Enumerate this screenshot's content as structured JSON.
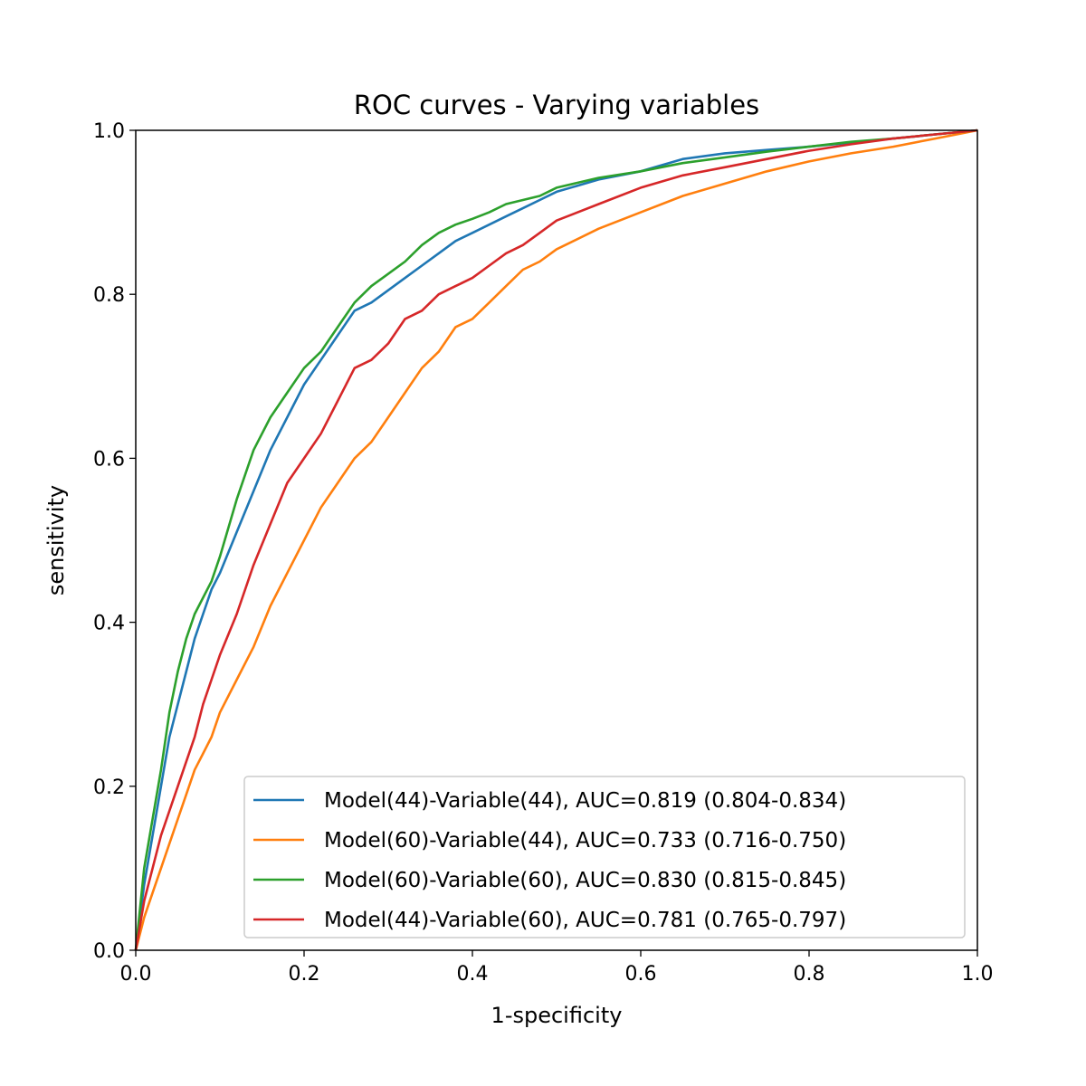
{
  "chart_data": {
    "type": "line",
    "title": "ROC curves - Varying variables",
    "xlabel": "1-specificity",
    "ylabel": "sensitivity",
    "xlim": [
      0.0,
      1.0
    ],
    "ylim": [
      0.0,
      1.0
    ],
    "xticks": [
      "0.0",
      "0.2",
      "0.4",
      "0.6",
      "0.8",
      "1.0"
    ],
    "yticks": [
      "0.0",
      "0.2",
      "0.4",
      "0.6",
      "0.8",
      "1.0"
    ],
    "grid": false,
    "legend_position": "lower-right",
    "series": [
      {
        "name": "Model(44)-Variable(44), AUC=0.819 (0.804-0.834)",
        "color": "#1f77b4",
        "x": [
          0,
          0.01,
          0.02,
          0.03,
          0.04,
          0.05,
          0.06,
          0.07,
          0.08,
          0.09,
          0.1,
          0.12,
          0.14,
          0.16,
          0.18,
          0.2,
          0.22,
          0.24,
          0.26,
          0.28,
          0.3,
          0.32,
          0.34,
          0.36,
          0.38,
          0.4,
          0.42,
          0.44,
          0.46,
          0.48,
          0.5,
          0.55,
          0.6,
          0.65,
          0.7,
          0.75,
          0.8,
          0.85,
          0.9,
          0.95,
          1.0
        ],
        "y": [
          0,
          0.08,
          0.14,
          0.2,
          0.26,
          0.3,
          0.34,
          0.38,
          0.41,
          0.44,
          0.46,
          0.51,
          0.56,
          0.61,
          0.65,
          0.69,
          0.72,
          0.75,
          0.78,
          0.79,
          0.805,
          0.82,
          0.835,
          0.85,
          0.865,
          0.875,
          0.885,
          0.895,
          0.905,
          0.915,
          0.925,
          0.94,
          0.95,
          0.965,
          0.972,
          0.976,
          0.98,
          0.985,
          0.99,
          0.995,
          1.0
        ]
      },
      {
        "name": "Model(60)-Variable(44), AUC=0.733 (0.716-0.750)",
        "color": "#ff7f0e",
        "x": [
          0,
          0.01,
          0.02,
          0.03,
          0.04,
          0.05,
          0.06,
          0.07,
          0.08,
          0.09,
          0.1,
          0.12,
          0.14,
          0.16,
          0.18,
          0.2,
          0.22,
          0.24,
          0.26,
          0.28,
          0.3,
          0.32,
          0.34,
          0.36,
          0.38,
          0.4,
          0.42,
          0.44,
          0.46,
          0.48,
          0.5,
          0.55,
          0.6,
          0.65,
          0.7,
          0.75,
          0.8,
          0.85,
          0.9,
          0.95,
          1.0
        ],
        "y": [
          0,
          0.04,
          0.07,
          0.1,
          0.13,
          0.16,
          0.19,
          0.22,
          0.24,
          0.26,
          0.29,
          0.33,
          0.37,
          0.42,
          0.46,
          0.5,
          0.54,
          0.57,
          0.6,
          0.62,
          0.65,
          0.68,
          0.71,
          0.73,
          0.76,
          0.77,
          0.79,
          0.81,
          0.83,
          0.84,
          0.855,
          0.88,
          0.9,
          0.92,
          0.935,
          0.95,
          0.962,
          0.972,
          0.98,
          0.99,
          1.0
        ]
      },
      {
        "name": "Model(60)-Variable(60), AUC=0.830 (0.815-0.845)",
        "color": "#2ca02c",
        "x": [
          0,
          0.01,
          0.02,
          0.03,
          0.04,
          0.05,
          0.06,
          0.07,
          0.08,
          0.09,
          0.1,
          0.12,
          0.14,
          0.16,
          0.18,
          0.2,
          0.22,
          0.24,
          0.26,
          0.28,
          0.3,
          0.32,
          0.34,
          0.36,
          0.38,
          0.4,
          0.42,
          0.44,
          0.46,
          0.48,
          0.5,
          0.55,
          0.6,
          0.65,
          0.7,
          0.75,
          0.8,
          0.85,
          0.9,
          0.95,
          1.0
        ],
        "y": [
          0,
          0.1,
          0.16,
          0.22,
          0.29,
          0.34,
          0.38,
          0.41,
          0.43,
          0.45,
          0.48,
          0.55,
          0.61,
          0.65,
          0.68,
          0.71,
          0.73,
          0.76,
          0.79,
          0.81,
          0.825,
          0.84,
          0.86,
          0.875,
          0.885,
          0.892,
          0.9,
          0.91,
          0.915,
          0.92,
          0.93,
          0.942,
          0.95,
          0.96,
          0.967,
          0.974,
          0.98,
          0.986,
          0.99,
          0.995,
          1.0
        ]
      },
      {
        "name": "Model(44)-Variable(60), AUC=0.781 (0.765-0.797)",
        "color": "#d62728",
        "x": [
          0,
          0.01,
          0.02,
          0.03,
          0.04,
          0.05,
          0.06,
          0.07,
          0.08,
          0.09,
          0.1,
          0.12,
          0.14,
          0.16,
          0.18,
          0.2,
          0.22,
          0.24,
          0.26,
          0.28,
          0.3,
          0.32,
          0.34,
          0.36,
          0.38,
          0.4,
          0.42,
          0.44,
          0.46,
          0.48,
          0.5,
          0.55,
          0.6,
          0.65,
          0.7,
          0.75,
          0.8,
          0.85,
          0.9,
          0.95,
          1.0
        ],
        "y": [
          0,
          0.06,
          0.1,
          0.14,
          0.17,
          0.2,
          0.23,
          0.26,
          0.3,
          0.33,
          0.36,
          0.41,
          0.47,
          0.52,
          0.57,
          0.6,
          0.63,
          0.67,
          0.71,
          0.72,
          0.74,
          0.77,
          0.78,
          0.8,
          0.81,
          0.82,
          0.835,
          0.85,
          0.86,
          0.875,
          0.89,
          0.91,
          0.93,
          0.945,
          0.955,
          0.965,
          0.975,
          0.983,
          0.99,
          0.995,
          1.0
        ]
      }
    ]
  }
}
